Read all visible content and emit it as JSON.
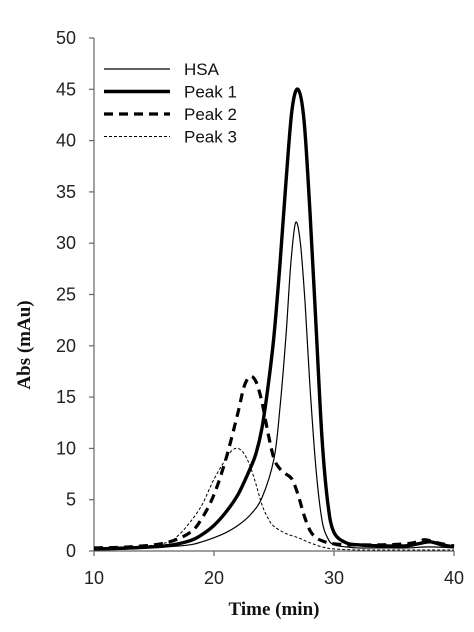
{
  "chart_data": {
    "type": "line",
    "xlabel": "Time (min)",
    "ylabel": "Abs (mAu)",
    "xlim": [
      10,
      40
    ],
    "ylim": [
      0,
      50
    ],
    "x_ticks": [
      10,
      20,
      30,
      40
    ],
    "y_ticks": [
      0,
      5,
      10,
      15,
      20,
      25,
      30,
      35,
      40,
      45,
      50
    ],
    "grid": false,
    "legend_position": "top-left",
    "series": [
      {
        "name": "HSA",
        "style": "thin-solid",
        "x": [
          10,
          13,
          16,
          18,
          19,
          20,
          21,
          22,
          23,
          24,
          25,
          25.5,
          26,
          26.4,
          26.8,
          27.2,
          27.6,
          28,
          28.5,
          29,
          29.5,
          30,
          31,
          32,
          34,
          36,
          38,
          40
        ],
        "y": [
          0.2,
          0.3,
          0.4,
          0.6,
          0.9,
          1.3,
          1.8,
          2.5,
          3.5,
          5.2,
          9,
          14,
          21,
          28,
          32,
          30,
          24,
          16,
          8,
          3,
          1.2,
          0.6,
          0.4,
          0.3,
          0.3,
          0.3,
          0.4,
          0.3
        ]
      },
      {
        "name": "Peak 1",
        "style": "thick-solid",
        "x": [
          10,
          13,
          16,
          18,
          19,
          20,
          21,
          22,
          23,
          23.5,
          24,
          24.5,
          25,
          25.5,
          26,
          26.5,
          27,
          27.5,
          28,
          28.5,
          29,
          29.5,
          30,
          31,
          32,
          34,
          36,
          37,
          38,
          39,
          40
        ],
        "y": [
          0.2,
          0.3,
          0.5,
          1.0,
          1.6,
          2.5,
          3.8,
          5.5,
          8,
          9.5,
          12,
          16,
          21,
          28,
          36,
          43,
          45,
          42,
          33,
          22,
          11,
          4.5,
          1.8,
          0.8,
          0.6,
          0.5,
          0.5,
          0.7,
          0.9,
          0.6,
          0.4
        ]
      },
      {
        "name": "Peak 2",
        "style": "thick-dashed",
        "x": [
          10,
          13,
          16,
          18,
          19,
          20,
          21,
          22,
          22.5,
          23,
          23.5,
          24,
          24.5,
          25,
          25.5,
          26,
          26.5,
          27,
          27.5,
          28,
          28.5,
          29,
          29.5,
          30,
          31,
          32,
          34,
          36,
          37,
          37.5,
          38,
          39,
          40
        ],
        "y": [
          0.3,
          0.4,
          0.8,
          1.8,
          3.2,
          5.5,
          9,
          13.5,
          16,
          17,
          16.5,
          14.5,
          11.5,
          9,
          8,
          7.5,
          7,
          5.5,
          3.5,
          2,
          1.3,
          1,
          0.8,
          0.7,
          0.6,
          0.6,
          0.6,
          0.7,
          0.9,
          1.1,
          1.0,
          0.7,
          0.5
        ]
      },
      {
        "name": "Peak 3",
        "style": "thin-dashed",
        "x": [
          10,
          13,
          16,
          17,
          18,
          19,
          20,
          21,
          21.5,
          22,
          22.5,
          23,
          23.5,
          24,
          24.5,
          25,
          26,
          27,
          28,
          29,
          30,
          32,
          34,
          36,
          38,
          40
        ],
        "y": [
          0.2,
          0.3,
          0.8,
          1.5,
          2.8,
          4.5,
          7,
          9,
          9.8,
          10,
          9.5,
          8.3,
          6.5,
          4.5,
          3.2,
          2.4,
          1.7,
          1.3,
          0.8,
          0.4,
          0.2,
          0.1,
          0.1,
          0.1,
          0.1,
          0.1
        ]
      }
    ]
  }
}
